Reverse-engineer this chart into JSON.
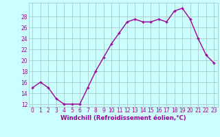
{
  "x": [
    0,
    1,
    2,
    3,
    4,
    5,
    6,
    7,
    8,
    9,
    10,
    11,
    12,
    13,
    14,
    15,
    16,
    17,
    18,
    19,
    20,
    21,
    22,
    23
  ],
  "y": [
    15,
    16,
    15,
    13,
    12,
    12,
    12,
    15,
    18,
    20.5,
    23,
    25,
    27,
    27.5,
    27,
    27,
    27.5,
    27,
    29,
    29.5,
    27.5,
    24,
    21,
    19.5
  ],
  "line_color": "#990099",
  "marker": "+",
  "marker_size": 3.5,
  "marker_lw": 1.0,
  "line_width": 1.0,
  "bg_color": "#ccffff",
  "grid_color": "#aacccc",
  "xlabel": "Windchill (Refroidissement éolien,°C)",
  "xlabel_color": "#990099",
  "tick_color": "#990099",
  "ylim": [
    11.5,
    30.5
  ],
  "yticks": [
    12,
    14,
    16,
    18,
    20,
    22,
    24,
    26,
    28
  ],
  "xlim": [
    -0.5,
    23.5
  ],
  "tick_fontsize": 5.5,
  "xlabel_fontsize": 6.2
}
